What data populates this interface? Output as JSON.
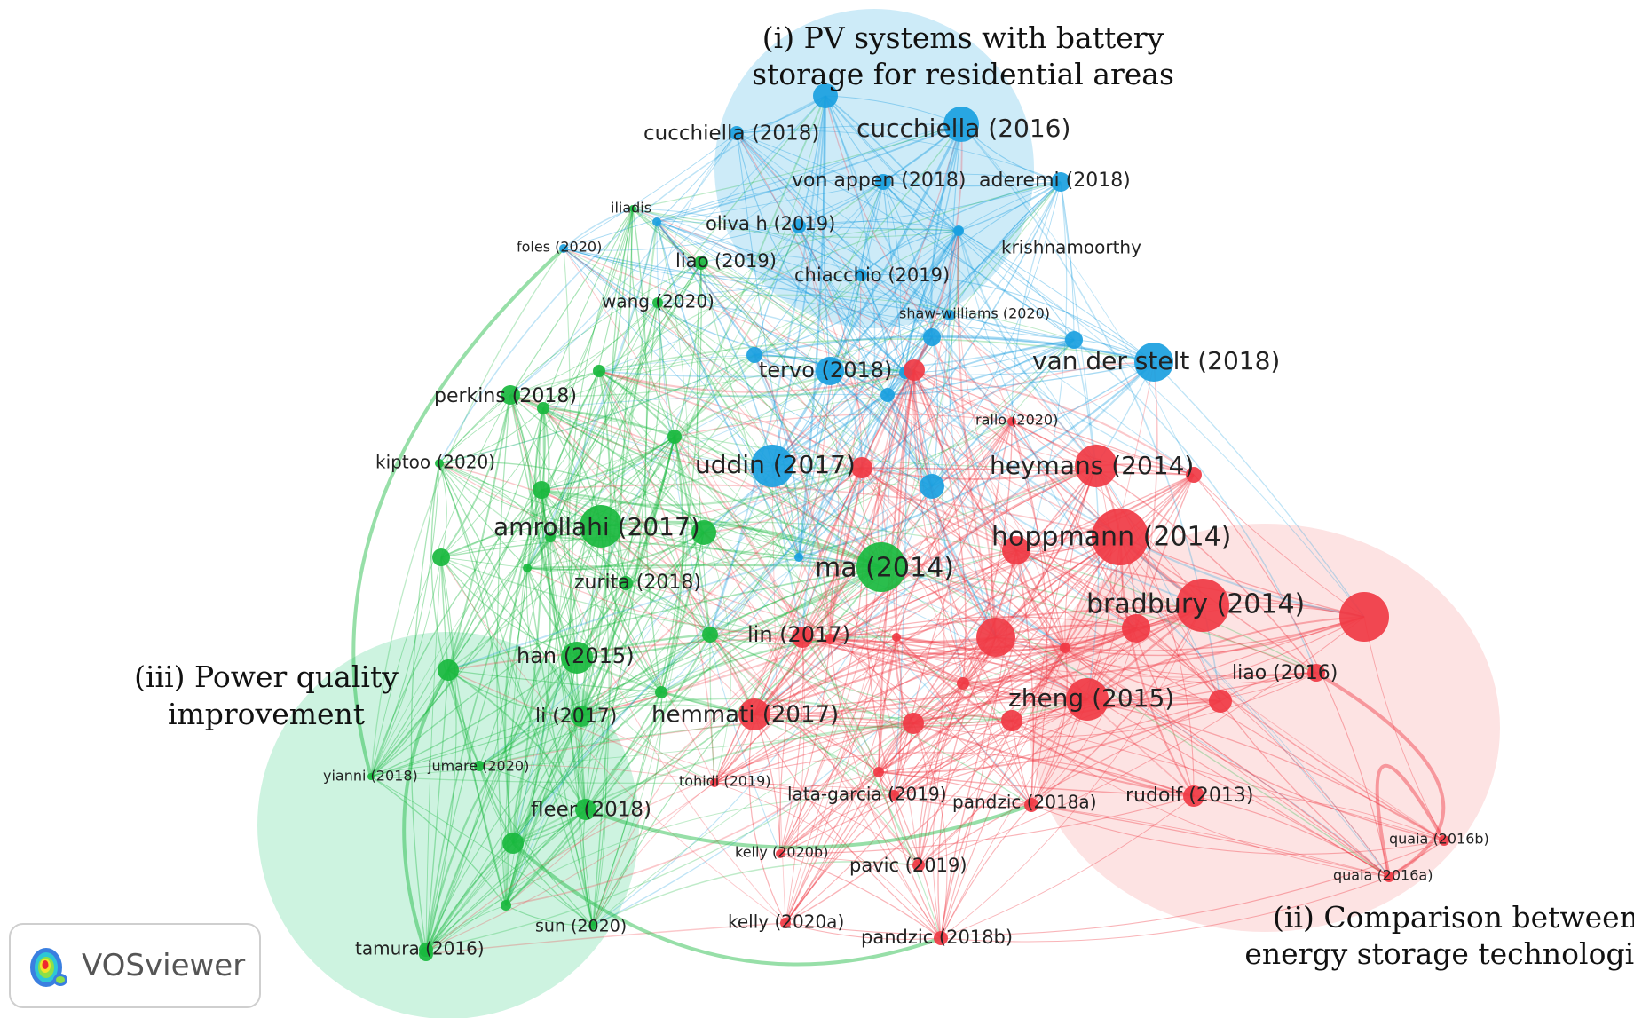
{
  "colors": {
    "cluster1": "#1a9fe0",
    "cluster2": "#f03a44",
    "cluster3": "#19b83e",
    "cluster1_bg": "#cdebf8",
    "cluster2_bg": "#fde3e3",
    "cluster3_bg": "#cdf3e0"
  },
  "cluster_labels": [
    {
      "id": "c1",
      "lines": [
        "(i) PV systems with battery",
        "storage for residential areas"
      ]
    },
    {
      "id": "c2",
      "lines": [
        "(ii) Comparison between",
        "energy storage technologies"
      ]
    },
    {
      "id": "c3",
      "lines": [
        "(iii) Power quality",
        "improvement"
      ]
    }
  ],
  "nodes": [
    {
      "id": "cucchiella2016",
      "label": "cucchiella (2016)",
      "cluster": 1,
      "weight": 3
    },
    {
      "id": "cucchiella2018",
      "label": "cucchiella (2018)",
      "cluster": 1,
      "weight": 1
    },
    {
      "id": "vonappen2018",
      "label": "von appen (2018)",
      "cluster": 1,
      "weight": 1
    },
    {
      "id": "aderemi2018",
      "label": "aderemi (2018)",
      "cluster": 1,
      "weight": 1
    },
    {
      "id": "olivah2019",
      "label": "oliva h (2019)",
      "cluster": 1,
      "weight": 1
    },
    {
      "id": "krishnamoorthy",
      "label": "krishnamoorthy",
      "cluster": 1,
      "weight": 1
    },
    {
      "id": "foles2020",
      "label": "foles (2020)",
      "cluster": 1,
      "weight": 1
    },
    {
      "id": "chiacchio2019",
      "label": "chiacchio (2019)",
      "cluster": 1,
      "weight": 1
    },
    {
      "id": "shawwilliams2020",
      "label": "shaw-williams (2020)",
      "cluster": 1,
      "weight": 1
    },
    {
      "id": "tervo2018",
      "label": "tervo (2018)",
      "cluster": 1,
      "weight": 2
    },
    {
      "id": "vanderstelt2018",
      "label": "van der stelt (2018)",
      "cluster": 1,
      "weight": 3
    },
    {
      "id": "uddin2017",
      "label": "uddin (2017)",
      "cluster": 1,
      "weight": 4
    },
    {
      "id": "iliadis",
      "label": "iliadis",
      "cluster": 3,
      "weight": 1
    },
    {
      "id": "liao2019",
      "label": "liao (2019)",
      "cluster": 3,
      "weight": 1
    },
    {
      "id": "wang2020",
      "label": "wang (2020)",
      "cluster": 3,
      "weight": 1
    },
    {
      "id": "perkins2018",
      "label": "perkins (2018)",
      "cluster": 3,
      "weight": 2
    },
    {
      "id": "kiptoo2020",
      "label": "kiptoo (2020)",
      "cluster": 3,
      "weight": 1
    },
    {
      "id": "amrollahi2017",
      "label": "amrollahi (2017)",
      "cluster": 3,
      "weight": 4
    },
    {
      "id": "zurita2018",
      "label": "zurita (2018)",
      "cluster": 3,
      "weight": 1
    },
    {
      "id": "ma2014",
      "label": "ma (2014)",
      "cluster": 3,
      "weight": 5
    },
    {
      "id": "han2015",
      "label": "han (2015)",
      "cluster": 3,
      "weight": 3
    },
    {
      "id": "li2017",
      "label": "li (2017)",
      "cluster": 3,
      "weight": 2
    },
    {
      "id": "yianni2018",
      "label": "yianni (2018)",
      "cluster": 3,
      "weight": 1
    },
    {
      "id": "jumare2020",
      "label": "jumare (2020)",
      "cluster": 3,
      "weight": 1
    },
    {
      "id": "fleer2018",
      "label": "fleer (2018)",
      "cluster": 3,
      "weight": 2
    },
    {
      "id": "sun2020",
      "label": "sun (2020)",
      "cluster": 3,
      "weight": 1
    },
    {
      "id": "tamura2016",
      "label": "tamura (2016)",
      "cluster": 3,
      "weight": 1
    },
    {
      "id": "heymans2014",
      "label": "heymans (2014)",
      "cluster": 2,
      "weight": 4
    },
    {
      "id": "rallo2020",
      "label": "rallo (2020)",
      "cluster": 2,
      "weight": 1
    },
    {
      "id": "hoppmann2014",
      "label": "hoppmann (2014)",
      "cluster": 2,
      "weight": 5
    },
    {
      "id": "bradbury2014",
      "label": "bradbury (2014)",
      "cluster": 2,
      "weight": 5
    },
    {
      "id": "lin2017",
      "label": "lin (2017)",
      "cluster": 2,
      "weight": 2
    },
    {
      "id": "hemmati2017",
      "label": "hemmati (2017)",
      "cluster": 2,
      "weight": 3
    },
    {
      "id": "liao2016",
      "label": "liao (2016)",
      "cluster": 2,
      "weight": 1
    },
    {
      "id": "zheng2015",
      "label": "zheng (2015)",
      "cluster": 2,
      "weight": 4
    },
    {
      "id": "tohidi2019",
      "label": "tohidi (2019)",
      "cluster": 2,
      "weight": 1
    },
    {
      "id": "latagarcia2019",
      "label": "lata-garcia (2019)",
      "cluster": 2,
      "weight": 1
    },
    {
      "id": "pandzic2018a",
      "label": "pandzic (2018a)",
      "cluster": 2,
      "weight": 1
    },
    {
      "id": "rudolf2013",
      "label": "rudolf (2013)",
      "cluster": 2,
      "weight": 2
    },
    {
      "id": "quaia2016b",
      "label": "quaia (2016b)",
      "cluster": 2,
      "weight": 1
    },
    {
      "id": "quaia2016a",
      "label": "quaia (2016a)",
      "cluster": 2,
      "weight": 1
    },
    {
      "id": "kelly2020b",
      "label": "kelly (2020b)",
      "cluster": 2,
      "weight": 1
    },
    {
      "id": "pavic2019",
      "label": "pavic (2019)",
      "cluster": 2,
      "weight": 1
    },
    {
      "id": "kelly2020a",
      "label": "kelly (2020a)",
      "cluster": 2,
      "weight": 1
    },
    {
      "id": "pandzic2018b",
      "label": "pandzic (2018b)",
      "cluster": 2,
      "weight": 1
    }
  ],
  "logo": {
    "text": "VOSviewer",
    "icon": "vosviewer-density-icon"
  }
}
